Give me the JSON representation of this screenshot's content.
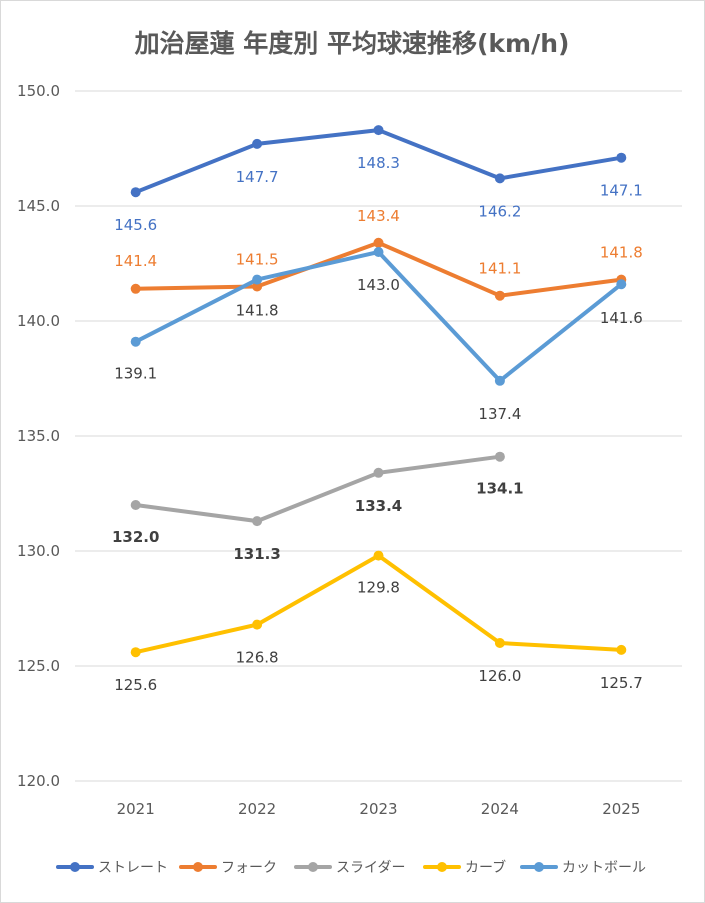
{
  "chart_data": {
    "type": "line",
    "title": "加治屋蓮 年度別 平均球速推移(km/h)",
    "xlabel": "",
    "ylabel": "",
    "ylim": [
      120.0,
      150.0
    ],
    "y_ticks": [
      "120.0",
      "125.0",
      "130.0",
      "135.0",
      "140.0",
      "145.0",
      "150.0"
    ],
    "y_tick_values": [
      120,
      125,
      130,
      135,
      140,
      145,
      150
    ],
    "grid": true,
    "legend_position": "bottom",
    "categories": [
      "2021",
      "2022",
      "2023",
      "2024",
      "2025"
    ],
    "series": [
      {
        "name": "ストレート",
        "color": "#4472C4",
        "values": [
          145.6,
          147.7,
          148.3,
          146.2,
          147.1
        ],
        "labels": [
          "145.6",
          "147.7",
          "148.3",
          "146.2",
          "147.1"
        ],
        "label_color": "#4472C4",
        "label_bold": false
      },
      {
        "name": "フォーク",
        "color": "#ED7D31",
        "values": [
          141.4,
          141.5,
          143.4,
          141.1,
          141.8
        ],
        "labels": [
          "141.4",
          "141.5",
          "143.4",
          "141.1",
          "141.8"
        ],
        "label_color": "#ED7D31",
        "label_bold": false
      },
      {
        "name": "スライダー",
        "color": "#A5A5A5",
        "values": [
          132.0,
          131.3,
          133.4,
          134.1,
          null
        ],
        "labels": [
          "132.0",
          "131.3",
          "133.4",
          "134.1",
          null
        ],
        "label_color": "#404040",
        "label_bold": true
      },
      {
        "name": "カーブ",
        "color": "#FFC000",
        "values": [
          125.6,
          126.8,
          129.8,
          126.0,
          125.7
        ],
        "labels": [
          "125.6",
          "126.8",
          "129.8",
          "126.0",
          "125.7"
        ],
        "label_color": "#404040",
        "label_bold": false
      },
      {
        "name": "カットボール",
        "color": "#5B9BD5",
        "values": [
          139.1,
          141.8,
          143.0,
          137.4,
          141.6
        ],
        "labels": [
          "139.1",
          "141.8",
          "143.0",
          "137.4",
          "141.6"
        ],
        "label_color": "#404040",
        "label_bold": false
      }
    ]
  }
}
